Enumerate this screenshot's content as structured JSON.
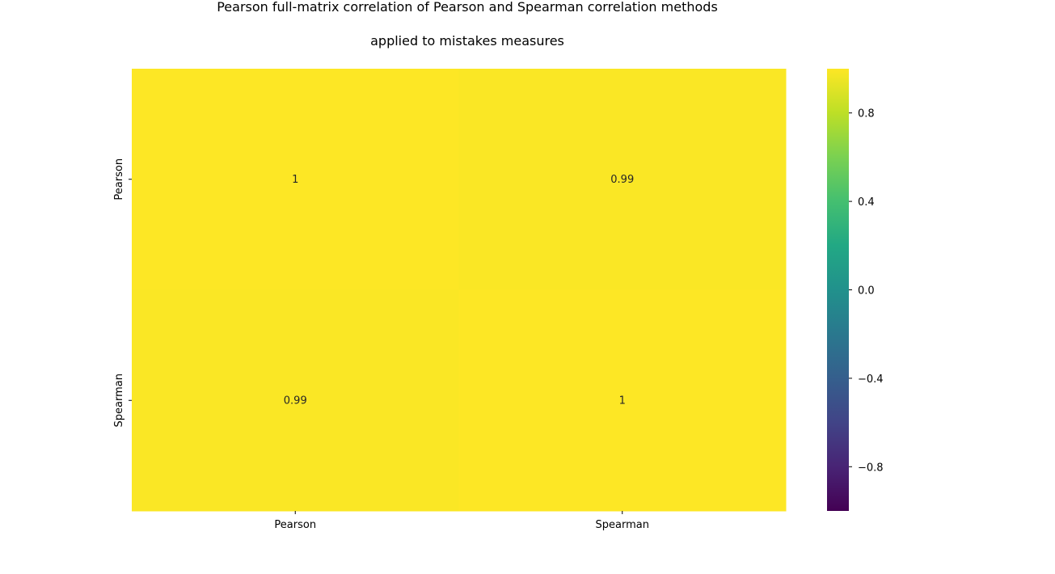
{
  "chart_data": {
    "type": "heatmap",
    "title_lines": [
      "Pearson full-matrix correlation of Pearson and Spearman correlation methods",
      "applied to mistakes measures"
    ],
    "x_labels": [
      "Pearson",
      "Spearman"
    ],
    "y_labels": [
      "Pearson",
      "Spearman"
    ],
    "values": [
      [
        1.0,
        0.99
      ],
      [
        0.99,
        1.0
      ]
    ],
    "cell_labels": [
      [
        "1",
        "0.99"
      ],
      [
        "0.99",
        "1"
      ]
    ],
    "colormap": "viridis",
    "vmin": -1,
    "vmax": 1,
    "colorbar_ticks": [
      0.8,
      0.4,
      0.0,
      -0.4,
      -0.8
    ],
    "colorbar_tick_labels": [
      "0.8",
      "0.4",
      "0.0",
      "−0.4",
      "−0.8"
    ],
    "colorbar_position": "right",
    "colors": {
      "high": "#fde725",
      "low": "#440154"
    }
  }
}
